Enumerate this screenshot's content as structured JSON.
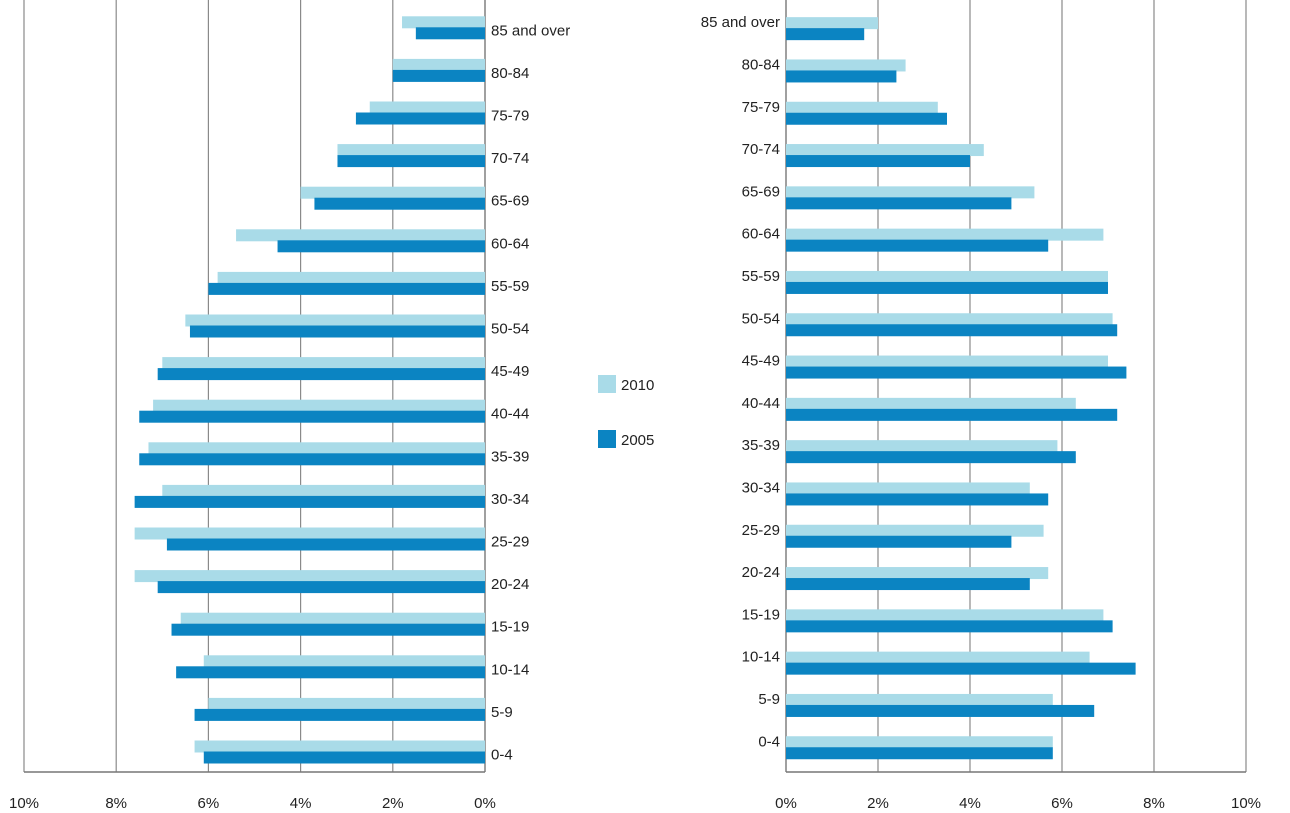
{
  "chart_data": [
    {
      "type": "bar",
      "orientation": "horizontal",
      "direction": "right-to-left",
      "categories": [
        "85 and over",
        "80-84",
        "75-79",
        "70-74",
        "65-69",
        "60-64",
        "55-59",
        "50-54",
        "45-49",
        "40-44",
        "35-39",
        "30-34",
        "25-29",
        "20-24",
        "15-19",
        "10-14",
        "5-9",
        "0-4"
      ],
      "series": [
        {
          "name": "2010",
          "color": "#a9dbe8",
          "values": [
            1.8,
            2.0,
            2.5,
            3.2,
            4.0,
            5.4,
            5.8,
            6.5,
            7.0,
            7.2,
            7.3,
            7.0,
            7.6,
            7.6,
            6.6,
            6.1,
            6.0,
            6.3
          ]
        },
        {
          "name": "2005",
          "color": "#0b84c2",
          "values": [
            1.5,
            2.0,
            2.8,
            3.2,
            3.7,
            4.5,
            6.0,
            6.4,
            7.1,
            7.5,
            7.5,
            7.6,
            6.9,
            7.1,
            6.8,
            6.7,
            6.3,
            6.1
          ]
        }
      ],
      "xlim": [
        0,
        10
      ],
      "xticks": [
        "10%",
        "8%",
        "6%",
        "4%",
        "2%",
        "0%"
      ],
      "grid": true
    },
    {
      "type": "bar",
      "orientation": "horizontal",
      "direction": "left-to-right",
      "categories": [
        "85 and over",
        "80-84",
        "75-79",
        "70-74",
        "65-69",
        "60-64",
        "55-59",
        "50-54",
        "45-49",
        "40-44",
        "35-39",
        "30-34",
        "25-29",
        "20-24",
        "15-19",
        "10-14",
        "5-9",
        "0-4"
      ],
      "series": [
        {
          "name": "2010",
          "color": "#a9dbe8",
          "values": [
            2.0,
            2.6,
            3.3,
            4.3,
            5.4,
            6.9,
            7.0,
            7.1,
            7.0,
            6.3,
            5.9,
            5.3,
            5.6,
            5.7,
            6.9,
            6.6,
            5.8,
            5.8
          ]
        },
        {
          "name": "2005",
          "color": "#0b84c2",
          "values": [
            1.7,
            2.4,
            3.5,
            4.0,
            4.9,
            5.7,
            7.0,
            7.2,
            7.4,
            7.2,
            6.3,
            5.7,
            4.9,
            5.3,
            7.1,
            7.6,
            6.7,
            5.8
          ]
        }
      ],
      "xlim": [
        0,
        10
      ],
      "xticks": [
        "0%",
        "2%",
        "4%",
        "6%",
        "8%",
        "10%"
      ],
      "grid": true
    }
  ],
  "legend": {
    "placement": "center",
    "items": [
      {
        "label": "2010",
        "color": "#a9dbe8"
      },
      {
        "label": "2005",
        "color": "#0b84c2"
      }
    ]
  }
}
